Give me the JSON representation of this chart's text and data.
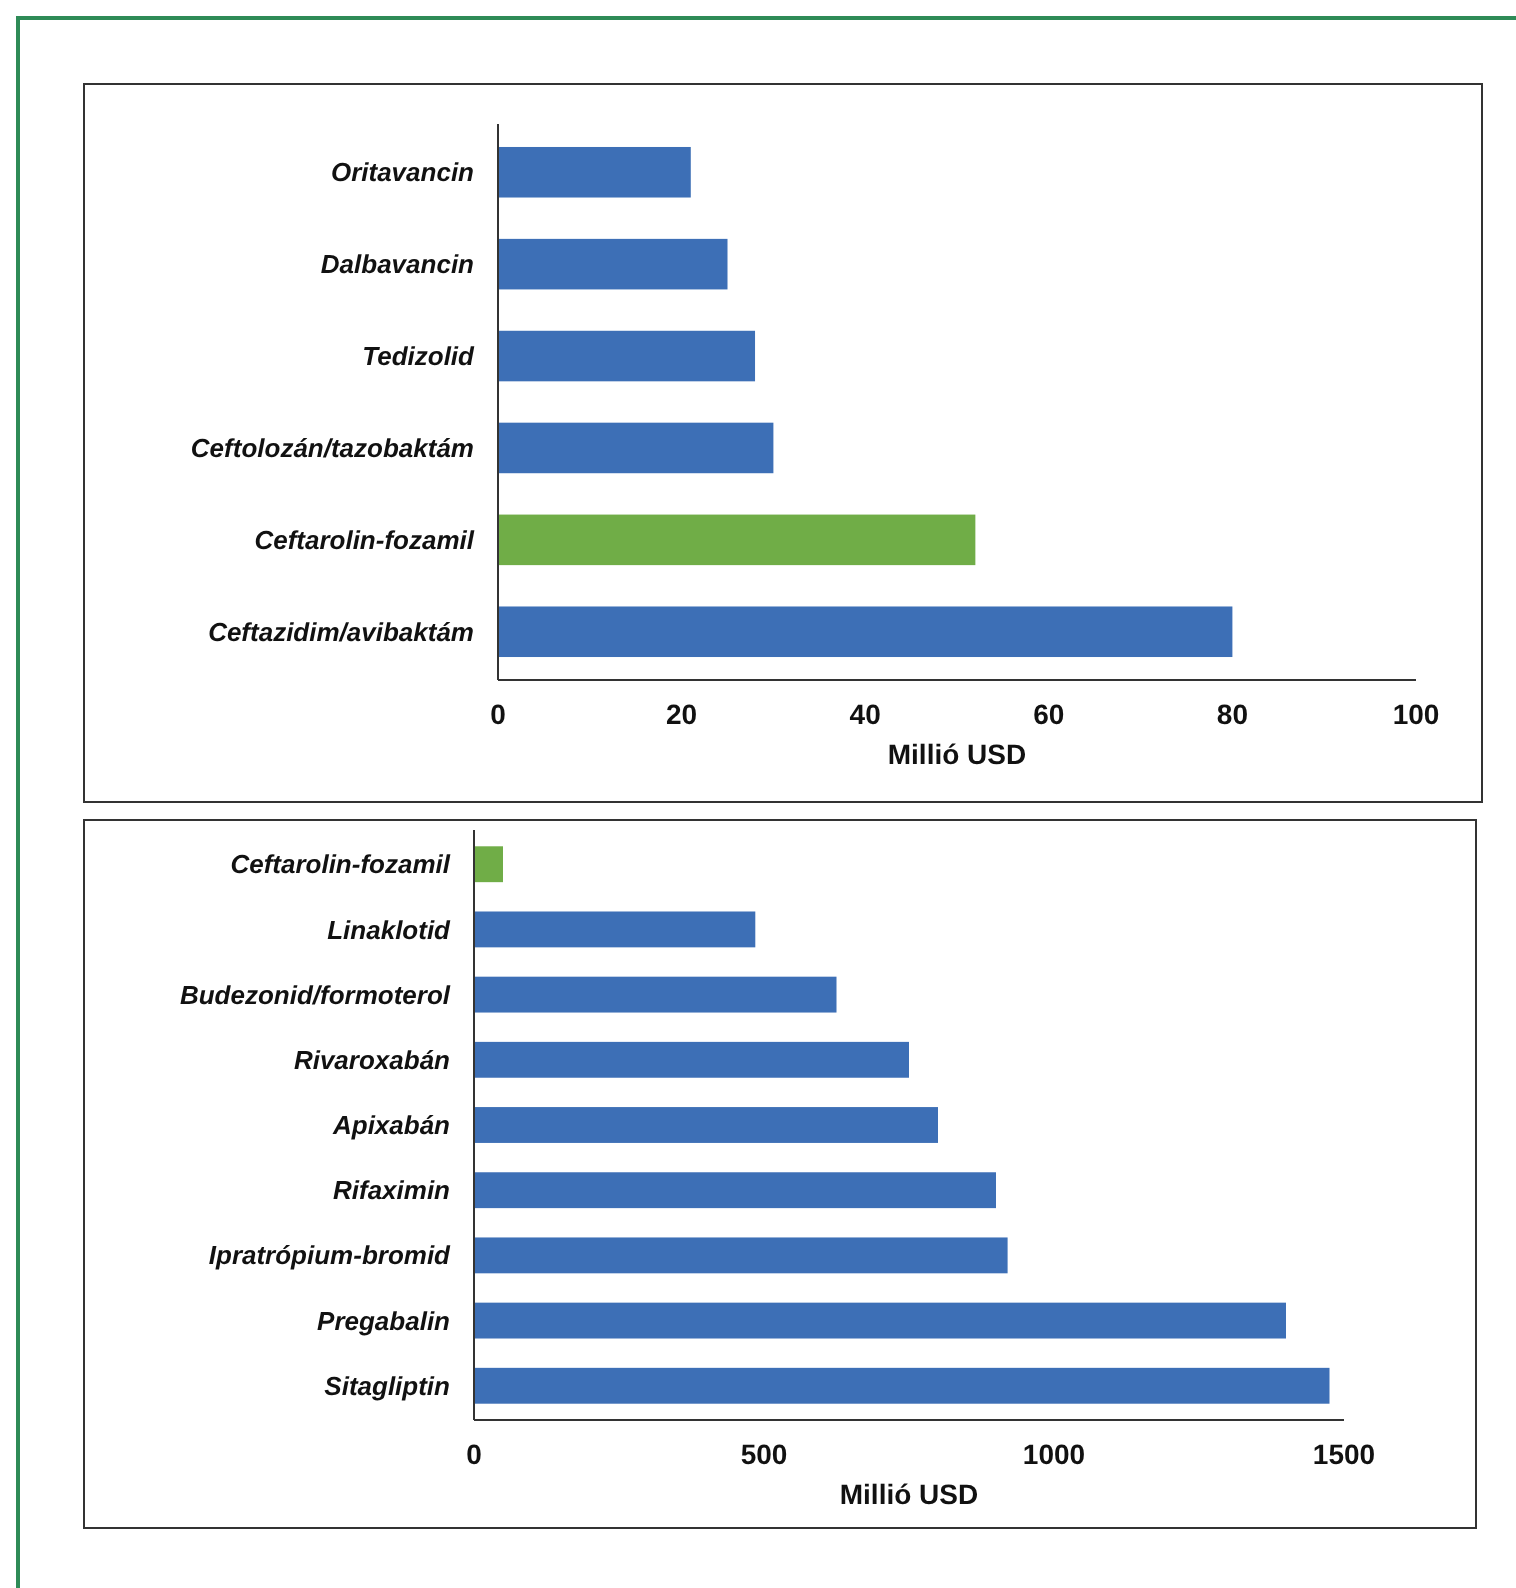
{
  "chart_data": [
    {
      "type": "bar",
      "orientation": "horizontal",
      "xlabel": "Millió USD",
      "categories": [
        "Oritavancin",
        "Dalbavancin",
        "Tedizolid",
        "Ceftolozán/tazobaktám",
        "Ceftarolin-fozamil",
        "Ceftazidim/avibaktám"
      ],
      "values": [
        21,
        25,
        28,
        30,
        52,
        80
      ],
      "colors": [
        "#3d6fb6",
        "#3d6fb6",
        "#3d6fb6",
        "#3d6fb6",
        "#70ad47",
        "#3d6fb6"
      ],
      "xlim": [
        0,
        100
      ],
      "xticks": [
        0,
        20,
        40,
        60,
        80,
        100
      ],
      "grid": false
    },
    {
      "type": "bar",
      "orientation": "horizontal",
      "xlabel": "Millió USD",
      "categories": [
        "Ceftarolin-fozamil",
        "Linaklotid",
        "Budezonid/formoterol",
        "Rivaroxabán",
        "Apixabán",
        "Rifaximin",
        "Ipratrópium-bromid",
        "Pregabalin",
        "Sitagliptin"
      ],
      "values": [
        50,
        485,
        625,
        750,
        800,
        900,
        920,
        1400,
        1475
      ],
      "colors": [
        "#70ad47",
        "#3d6fb6",
        "#3d6fb6",
        "#3d6fb6",
        "#3d6fb6",
        "#3d6fb6",
        "#3d6fb6",
        "#3d6fb6",
        "#3d6fb6"
      ],
      "xlim": [
        0,
        1500
      ],
      "xticks": [
        0,
        500,
        1000,
        1500
      ],
      "grid": false
    }
  ]
}
